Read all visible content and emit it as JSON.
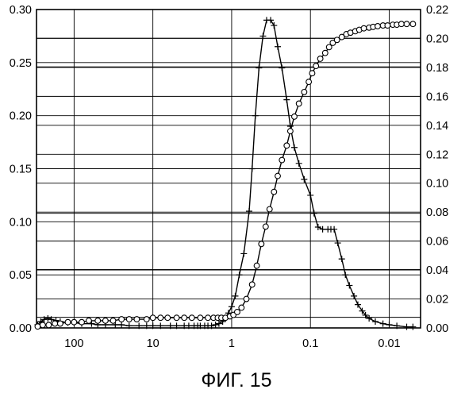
{
  "caption": "ФИГ. 15",
  "chart_data": {
    "type": "line",
    "x_scale": "log",
    "x_reversed": true,
    "xlim": [
      300,
      0.004
    ],
    "x_ticks": [
      100,
      10,
      1,
      0.1,
      0.01
    ],
    "x_tick_labels": [
      "100",
      "10",
      "1",
      "0.1",
      "0.01"
    ],
    "left_axis": {
      "ylim": [
        0,
        0.3
      ],
      "ticks": [
        0,
        0.05,
        0.1,
        0.15,
        0.2,
        0.25,
        0.3
      ],
      "tick_labels": [
        "0.00",
        "0.05",
        "0.10",
        "0.15",
        "0.20",
        "0.25",
        "0.30"
      ]
    },
    "right_axis": {
      "ylim": [
        0,
        0.22
      ],
      "ticks": [
        0,
        0.02,
        0.04,
        0.06,
        0.08,
        0.1,
        0.12,
        0.14,
        0.16,
        0.18,
        0.2,
        0.22
      ],
      "tick_labels": [
        "0.00",
        "0.02",
        "0.04",
        "0.06",
        "0.08",
        "0.10",
        "0.12",
        "0.14",
        "0.16",
        "0.18",
        "0.20",
        "0.22"
      ]
    },
    "grid": true,
    "extra_grid_lines_left_units": [
      0.01,
      0.055,
      0.108,
      0.246,
      0.273
    ],
    "series": [
      {
        "marker": "plus",
        "axis": "left",
        "x": [
          290,
          265,
          240,
          215,
          195,
          170,
          150,
          120,
          100,
          80,
          60,
          50,
          40,
          30,
          25,
          20,
          15,
          12,
          10,
          8,
          6,
          5,
          4,
          3.5,
          3,
          2.7,
          2.5,
          2.2,
          2.0,
          1.8,
          1.6,
          1.45,
          1.3,
          1.2,
          1.1,
          1.0,
          0.9,
          0.8,
          0.7,
          0.6,
          0.55,
          0.5,
          0.45,
          0.4,
          0.36,
          0.32,
          0.29,
          0.26,
          0.23,
          0.2,
          0.18,
          0.16,
          0.14,
          0.12,
          0.1,
          0.09,
          0.08,
          0.07,
          0.06,
          0.055,
          0.05,
          0.045,
          0.04,
          0.036,
          0.032,
          0.028,
          0.025,
          0.022,
          0.02,
          0.018,
          0.015,
          0.012,
          0.01,
          0.008,
          0.006,
          0.005
        ],
        "y": [
          0.003,
          0.006,
          0.008,
          0.009,
          0.008,
          0.007,
          0.006,
          0.005,
          0.005,
          0.004,
          0.004,
          0.003,
          0.003,
          0.003,
          0.003,
          0.002,
          0.002,
          0.002,
          0.002,
          0.002,
          0.002,
          0.002,
          0.002,
          0.002,
          0.002,
          0.002,
          0.002,
          0.002,
          0.002,
          0.002,
          0.003,
          0.004,
          0.006,
          0.009,
          0.014,
          0.02,
          0.03,
          0.05,
          0.07,
          0.11,
          0.15,
          0.2,
          0.245,
          0.275,
          0.29,
          0.29,
          0.285,
          0.265,
          0.245,
          0.215,
          0.19,
          0.17,
          0.155,
          0.14,
          0.125,
          0.108,
          0.095,
          0.093,
          0.093,
          0.093,
          0.093,
          0.08,
          0.065,
          0.05,
          0.04,
          0.03,
          0.022,
          0.016,
          0.012,
          0.009,
          0.006,
          0.004,
          0.003,
          0.002,
          0.001,
          0.001
        ]
      },
      {
        "marker": "circle",
        "axis": "right",
        "x": [
          290,
          250,
          210,
          175,
          150,
          120,
          100,
          80,
          65,
          50,
          40,
          32,
          25,
          20,
          16,
          12,
          10,
          8,
          6.5,
          5,
          4,
          3.2,
          2.5,
          2.0,
          1.7,
          1.5,
          1.35,
          1.2,
          1.05,
          0.95,
          0.85,
          0.75,
          0.65,
          0.55,
          0.48,
          0.42,
          0.37,
          0.33,
          0.29,
          0.26,
          0.23,
          0.2,
          0.18,
          0.16,
          0.14,
          0.12,
          0.105,
          0.095,
          0.085,
          0.075,
          0.065,
          0.058,
          0.052,
          0.046,
          0.04,
          0.035,
          0.031,
          0.027,
          0.024,
          0.021,
          0.018,
          0.016,
          0.014,
          0.012,
          0.0105,
          0.009,
          0.008,
          0.007,
          0.006,
          0.005
        ],
        "y": [
          0.001,
          0.002,
          0.002,
          0.003,
          0.003,
          0.004,
          0.004,
          0.004,
          0.005,
          0.005,
          0.005,
          0.005,
          0.006,
          0.006,
          0.006,
          0.006,
          0.007,
          0.007,
          0.007,
          0.007,
          0.007,
          0.007,
          0.007,
          0.007,
          0.007,
          0.007,
          0.007,
          0.007,
          0.008,
          0.009,
          0.011,
          0.014,
          0.02,
          0.03,
          0.043,
          0.058,
          0.07,
          0.082,
          0.094,
          0.105,
          0.116,
          0.126,
          0.136,
          0.146,
          0.155,
          0.163,
          0.17,
          0.176,
          0.181,
          0.186,
          0.19,
          0.194,
          0.197,
          0.199,
          0.201,
          0.203,
          0.204,
          0.205,
          0.206,
          0.207,
          0.2075,
          0.208,
          0.2085,
          0.209,
          0.209,
          0.2095,
          0.2095,
          0.21,
          0.21,
          0.21
        ]
      }
    ]
  }
}
